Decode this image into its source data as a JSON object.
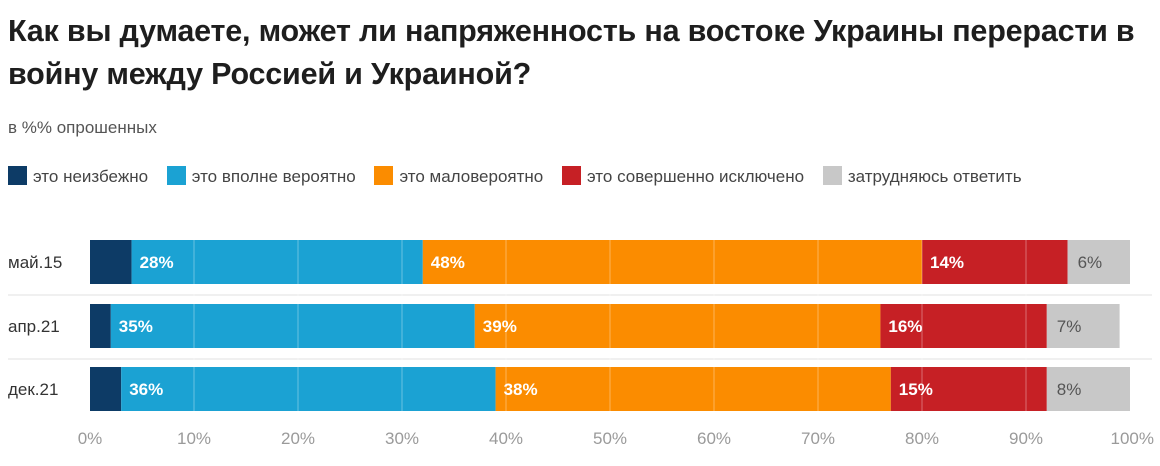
{
  "chart_data": {
    "type": "bar",
    "orientation": "horizontal",
    "stacked": true,
    "title": "Как вы думаете, может ли напряженность на востоке Украины перерасти в войну между Россией и Украиной?",
    "subtitle": "в %% опрошенных",
    "categories": [
      "май.15",
      "апр.21",
      "дек.21"
    ],
    "series": [
      {
        "name": "это неизбежно",
        "color": "#0d3b66",
        "values": [
          4,
          2,
          3
        ],
        "labels": [
          "",
          "",
          ""
        ]
      },
      {
        "name": "это вполне вероятно",
        "color": "#1ba2d3",
        "values": [
          28,
          35,
          36
        ],
        "labels": [
          "28%",
          "35%",
          "36%"
        ]
      },
      {
        "name": "это маловероятно",
        "color": "#fb8c00",
        "values": [
          48,
          39,
          38
        ],
        "labels": [
          "48%",
          "39%",
          "38%"
        ]
      },
      {
        "name": "это совершенно исключено",
        "color": "#c62025",
        "values": [
          14,
          16,
          15
        ],
        "labels": [
          "14%",
          "16%",
          "15%"
        ]
      },
      {
        "name": "затрудняюсь ответить",
        "color": "#c8c8c8",
        "values": [
          6,
          7,
          8
        ],
        "labels": [
          "6%",
          "7%",
          "8%"
        ]
      }
    ],
    "xlim": [
      0,
      100
    ],
    "xticks": [
      "0%",
      "10%",
      "20%",
      "30%",
      "40%",
      "50%",
      "60%",
      "70%",
      "80%",
      "90%",
      "100%"
    ],
    "grid": true,
    "legend_position": "top"
  }
}
